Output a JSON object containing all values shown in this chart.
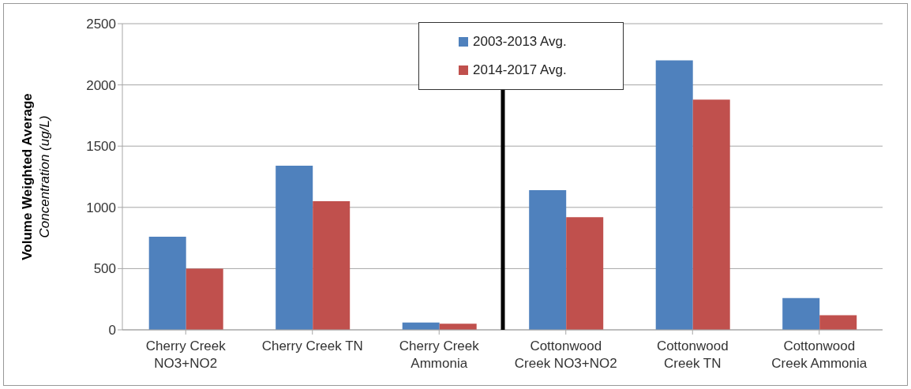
{
  "chart_data": {
    "type": "bar",
    "ylabel": "Volume Weighted Average\nConcentration (ug/L)",
    "categories": [
      "Cherry Creek NO3+NO2",
      "Cherry Creek TN",
      "Cherry Creek Ammonia",
      "Cottonwood Creek NO3+NO2",
      "Cottonwood Creek TN",
      "Cottonwood Creek Ammonia"
    ],
    "series": [
      {
        "name": "2003-2013 Avg.",
        "color": "#4f81bd",
        "values": [
          760,
          1340,
          60,
          1140,
          2200,
          260
        ]
      },
      {
        "name": "2014-2017 Avg.",
        "color": "#c0504d",
        "values": [
          500,
          1050,
          50,
          920,
          1880,
          120
        ]
      }
    ],
    "ylim": [
      0,
      2500
    ],
    "yticks": [
      0,
      500,
      1000,
      1500,
      2000,
      2500
    ],
    "grid": "y",
    "legend": "top"
  }
}
